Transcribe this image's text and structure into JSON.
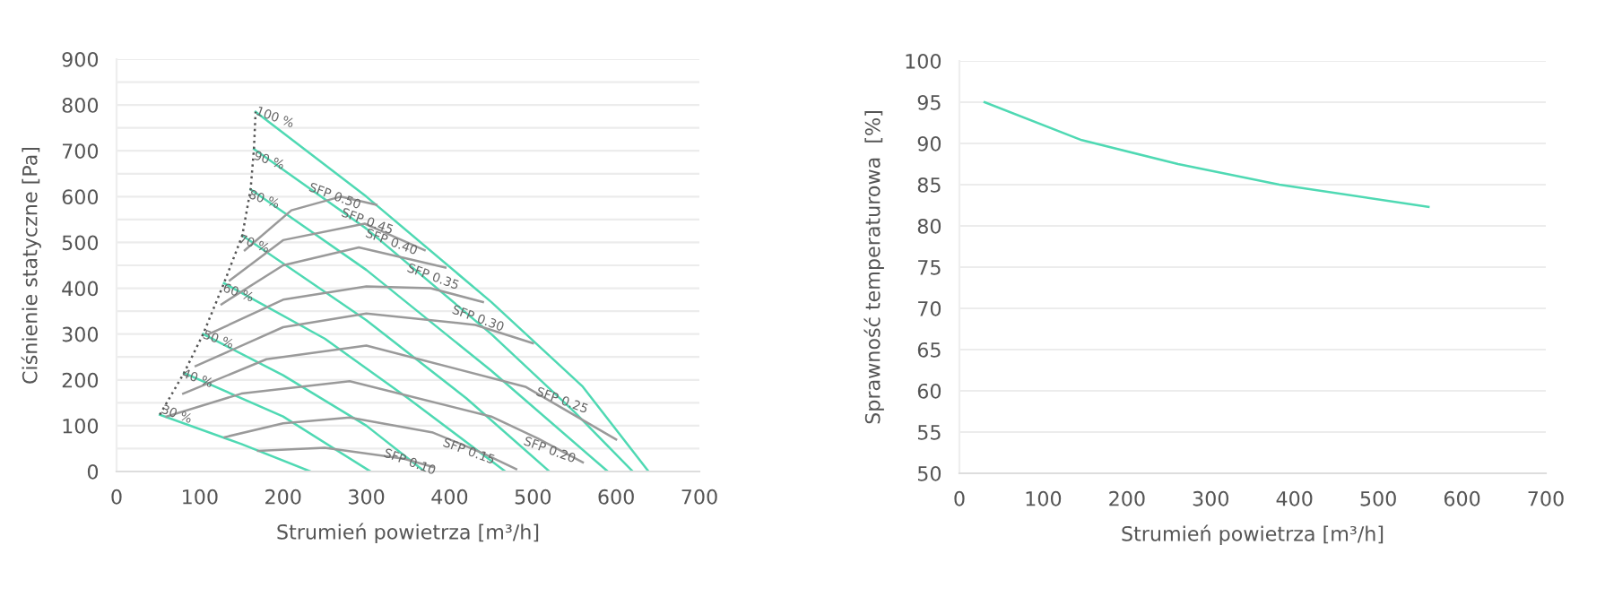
{
  "chart_data": [
    {
      "type": "line",
      "xlabel": "Strumień powietrza [m³/h]",
      "ylabel": "Ciśnienie statyczne [Pa]",
      "xlim": [
        0,
        700
      ],
      "xticks": [
        0,
        100,
        200,
        300,
        400,
        500,
        600,
        700
      ],
      "ylim": [
        0,
        900
      ],
      "yticks": [
        0,
        {
          "value": 50,
          "label": null
        },
        100,
        {
          "value": 150,
          "label": null
        },
        200,
        {
          "value": 250,
          "label": null
        },
        300,
        {
          "value": 350,
          "label": null
        },
        400,
        {
          "value": 450,
          "label": null
        },
        500,
        {
          "value": 550,
          "label": null
        },
        600,
        {
          "value": 650,
          "label": null
        },
        700,
        {
          "value": 750,
          "label": null
        },
        800,
        {
          "value": 850,
          "label": null
        },
        900
      ],
      "grid": "y",
      "legend": false,
      "marker": "none",
      "series": [
        {
          "color": "#4fd9b3",
          "x": [
            167,
            300,
            450,
            560,
            639
          ],
          "values": [
            785,
            600,
            370,
            185,
            0
          ]
        },
        {
          "color": "#4fd9b3",
          "x": [
            165,
            300,
            450,
            550,
            620
          ],
          "values": [
            704,
            530,
            300,
            130,
            0
          ]
        },
        {
          "color": "#4fd9b3",
          "x": [
            161,
            300,
            450,
            590
          ],
          "values": [
            616,
            440,
            220,
            0
          ]
        },
        {
          "color": "#4fd9b3",
          "x": [
            151,
            300,
            420,
            520
          ],
          "values": [
            515,
            330,
            160,
            0
          ]
        },
        {
          "color": "#4fd9b3",
          "x": [
            129,
            250,
            350,
            467
          ],
          "values": [
            411,
            290,
            160,
            0
          ]
        },
        {
          "color": "#4fd9b3",
          "x": [
            104,
            200,
            300,
            370
          ],
          "values": [
            300,
            210,
            100,
            0
          ]
        },
        {
          "color": "#4fd9b3",
          "x": [
            81,
            200,
            305
          ],
          "values": [
            215,
            120,
            0
          ]
        },
        {
          "color": "#4fd9b3",
          "x": [
            52,
            150,
            233
          ],
          "values": [
            124,
            60,
            0
          ]
        },
        {
          "color": "#555555",
          "line_style": "dotted",
          "x": [
            52,
            81,
            104,
            129,
            151,
            161,
            165,
            167
          ],
          "values": [
            124,
            215,
            300,
            411,
            515,
            616,
            704,
            785
          ]
        },
        {
          "color": "#9a9a9a",
          "x": [
            154,
            210,
            269,
            312
          ],
          "values": [
            483,
            570,
            600,
            582
          ]
        },
        {
          "color": "#9a9a9a",
          "x": [
            136,
            200,
            298,
            370
          ],
          "values": [
            417,
            505,
            541,
            483
          ]
        },
        {
          "color": "#9a9a9a",
          "x": [
            126,
            200,
            291,
            395
          ],
          "values": [
            365,
            450,
            489,
            445
          ]
        },
        {
          "color": "#9a9a9a",
          "x": [
            111,
            200,
            300,
            377,
            440
          ],
          "values": [
            300,
            375,
            404,
            400,
            370
          ]
        },
        {
          "color": "#9a9a9a",
          "x": [
            95,
            200,
            300,
            431,
            500
          ],
          "values": [
            230,
            315,
            345,
            320,
            280
          ]
        },
        {
          "color": "#9a9a9a",
          "x": [
            80,
            180,
            300,
            491,
            600
          ],
          "values": [
            170,
            245,
            275,
            185,
            70
          ]
        },
        {
          "color": "#9a9a9a",
          "x": [
            60,
            150,
            280,
            450,
            506,
            560
          ],
          "values": [
            120,
            170,
            197,
            120,
            72,
            20
          ]
        },
        {
          "color": "#9a9a9a",
          "x": [
            130,
            200,
            280,
            380,
            440,
            480
          ],
          "values": [
            75,
            105,
            118,
            85,
            40,
            5
          ]
        },
        {
          "color": "#9a9a9a",
          "x": [
            170,
            250,
            345,
            380
          ],
          "values": [
            45,
            52,
            28,
            10
          ]
        }
      ],
      "annotations": [
        {
          "text": "100 %",
          "x": 190,
          "y": 772
        },
        {
          "text": "90 %",
          "x": 183,
          "y": 678
        },
        {
          "text": "80 %",
          "x": 177,
          "y": 593
        },
        {
          "text": "70 %",
          "x": 165,
          "y": 496
        },
        {
          "text": "60 %",
          "x": 146,
          "y": 389
        },
        {
          "text": "50 %",
          "x": 122,
          "y": 287
        },
        {
          "text": "40 %",
          "x": 97,
          "y": 202
        },
        {
          "text": "30 %",
          "x": 72,
          "y": 124
        },
        {
          "text": "SFP 0.50",
          "x": 262,
          "y": 600
        },
        {
          "text": "SFP 0.45",
          "x": 301,
          "y": 545
        },
        {
          "text": "SFP 0.40",
          "x": 330,
          "y": 500
        },
        {
          "text": "SFP 0.35",
          "x": 380,
          "y": 424
        },
        {
          "text": "SFP 0.30",
          "x": 434,
          "y": 333
        },
        {
          "text": "SFP 0.25",
          "x": 535,
          "y": 154
        },
        {
          "text": "SFP 0.20",
          "x": 520,
          "y": 46
        },
        {
          "text": "SFP 0.15",
          "x": 423,
          "y": 43
        },
        {
          "text": "SFP 0.10",
          "x": 352,
          "y": 20
        }
      ]
    },
    {
      "type": "line",
      "xlabel": "Strumień powietrza [m³/h]",
      "ylabel": "Sprawność temperaturowa  [%]",
      "xlim": [
        0,
        700
      ],
      "xticks": [
        0,
        100,
        200,
        300,
        400,
        500,
        600,
        700
      ],
      "ylim": [
        50,
        100
      ],
      "yticks": [
        50,
        55,
        60,
        65,
        70,
        75,
        80,
        85,
        90,
        95,
        100
      ],
      "grid": "y",
      "legend": false,
      "marker": "none",
      "series": [
        {
          "color": "#4fd9b3",
          "x": [
            30,
            146,
            261,
            382,
            560
          ],
          "values": [
            95,
            90.4,
            87.5,
            85,
            82.3
          ]
        }
      ]
    }
  ]
}
